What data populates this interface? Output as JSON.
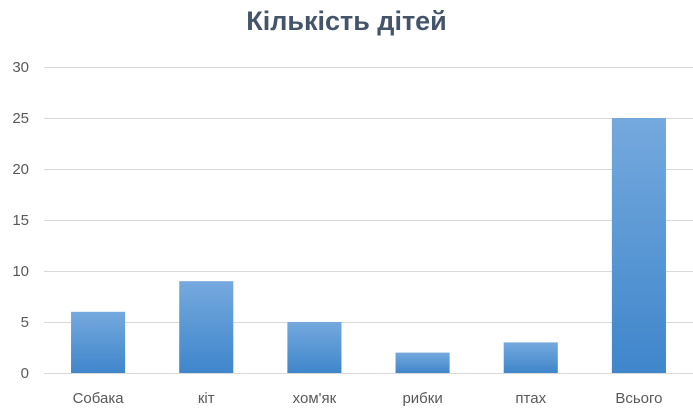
{
  "chart_data": {
    "type": "bar",
    "title": "Кількість дітей",
    "categories": [
      "Собака",
      "кіт",
      "хом'як",
      "рибки",
      "птах",
      "Всього"
    ],
    "values": [
      6,
      9,
      5,
      2,
      3,
      25
    ],
    "yticks": [
      0,
      5,
      10,
      15,
      20,
      25,
      30
    ],
    "ylim": [
      0,
      30
    ],
    "xlabel": "",
    "ylabel": "",
    "grid": true,
    "legend": "none",
    "colors": {
      "bar_top": "#75a9de",
      "bar_bottom": "#3f86cb",
      "grid": "#d9d9d9",
      "axis": "#d9d9d9",
      "tick_text": "#595959",
      "title": "#44546a"
    }
  }
}
